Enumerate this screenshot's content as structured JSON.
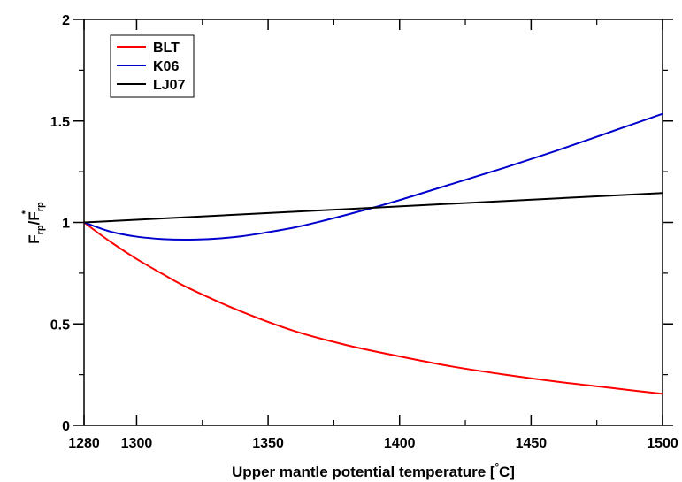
{
  "chart_data": {
    "type": "line",
    "xlabel_main": "Upper mantle potential temperature [",
    "xlabel_degree": "°",
    "xlabel_unit": "C]",
    "ylabel": {
      "base1": "F",
      "sub1": "rp",
      "slash": "/F",
      "sub2": "rp",
      "sup": "*"
    },
    "xlim": [
      1280,
      1500
    ],
    "ylim": [
      0,
      2
    ],
    "x_ticks": [
      1280,
      1300,
      1350,
      1400,
      1450,
      1500
    ],
    "x_tick_labels": [
      "1280",
      "1300",
      "1350",
      "1400",
      "1450",
      "1500"
    ],
    "y_ticks": [
      0,
      0.5,
      1,
      1.5,
      2
    ],
    "y_tick_labels": [
      "0",
      "0.5",
      "1",
      "1.5",
      "2"
    ],
    "grid": false,
    "legend_position": "top-left",
    "series": [
      {
        "name": "BLT",
        "color": "#ff0000",
        "x": [
          1280,
          1290,
          1300,
          1310,
          1320,
          1340,
          1360,
          1380,
          1400,
          1420,
          1440,
          1460,
          1480,
          1500
        ],
        "y": [
          1.0,
          0.905,
          0.82,
          0.745,
          0.675,
          0.56,
          0.465,
          0.395,
          0.34,
          0.29,
          0.25,
          0.215,
          0.185,
          0.155
        ]
      },
      {
        "name": "K06",
        "color": "#0000cc",
        "x": [
          1280,
          1290,
          1300,
          1310,
          1320,
          1330,
          1340,
          1350,
          1360,
          1370,
          1380,
          1390,
          1400,
          1420,
          1440,
          1460,
          1480,
          1500
        ],
        "y": [
          1.0,
          0.955,
          0.93,
          0.918,
          0.915,
          0.92,
          0.932,
          0.952,
          0.975,
          1.005,
          1.038,
          1.073,
          1.11,
          1.19,
          1.27,
          1.355,
          1.445,
          1.535
        ]
      },
      {
        "name": "LJ07",
        "color": "#000000",
        "x": [
          1280,
          1500
        ],
        "y": [
          1.0,
          1.145
        ]
      }
    ]
  }
}
